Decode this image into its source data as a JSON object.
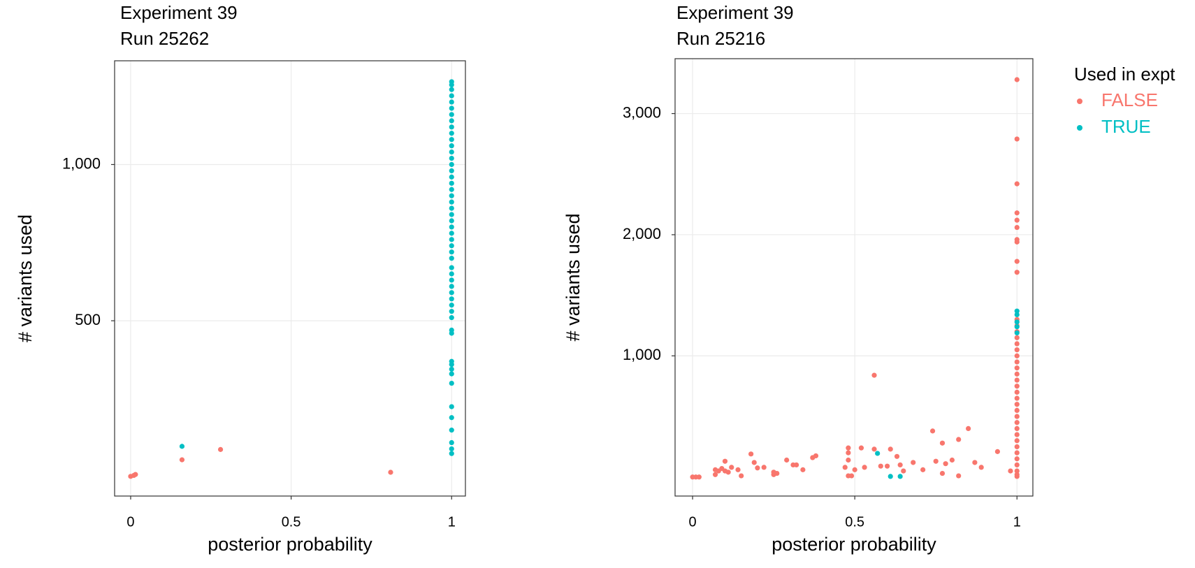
{
  "chart_data": [
    {
      "type": "scatter",
      "title": "Experiment 39",
      "subtitle": "Run 25262",
      "x_label": "posterior probability",
      "y_label": "# variants used",
      "xlim": [
        -0.05,
        1.043
      ],
      "ylim": [
        -61,
        1332
      ],
      "xticks": [
        0,
        0.5,
        1
      ],
      "yticks": [
        500,
        {
          "value": 1000,
          "label": "1,000"
        }
      ],
      "grid": true,
      "series": [
        {
          "color": "#F8766D",
          "x": [
            0,
            0.01,
            0.015,
            0.16,
            0.28,
            0.81
          ],
          "values": [
            2,
            5,
            8,
            55,
            88,
            15
          ]
        },
        {
          "color": "#00BFC4",
          "x": [
            0.16,
            1,
            1,
            1,
            1,
            1,
            1,
            1,
            1,
            1,
            1,
            1,
            1,
            1,
            1,
            1,
            1,
            1,
            1,
            1,
            1,
            1,
            1,
            1,
            1,
            1,
            1,
            1,
            1,
            1,
            1,
            1,
            1,
            1,
            1,
            1,
            1,
            1,
            1,
            1,
            1,
            1,
            1,
            1,
            1,
            1,
            1,
            1,
            1,
            1,
            1,
            1,
            1
          ],
          "values": [
            98,
            75,
            90,
            110,
            150,
            190,
            225,
            300,
            330,
            345,
            360,
            370,
            460,
            470,
            510,
            530,
            550,
            570,
            590,
            610,
            630,
            650,
            670,
            700,
            720,
            740,
            760,
            780,
            800,
            820,
            840,
            860,
            880,
            900,
            920,
            940,
            960,
            980,
            1000,
            1020,
            1040,
            1060,
            1080,
            1100,
            1120,
            1140,
            1160,
            1180,
            1200,
            1220,
            1240,
            1255,
            1265
          ]
        }
      ]
    },
    {
      "type": "scatter",
      "title": "Experiment 39",
      "subtitle": "Run 25216",
      "x_label": "posterior probability",
      "y_label": "# variants used",
      "xlim": [
        -0.054,
        1.049
      ],
      "ylim": [
        -157,
        3453
      ],
      "xticks": [
        0,
        0.5,
        1
      ],
      "yticks": [
        {
          "value": 1000,
          "label": "1,000"
        },
        {
          "value": 2000,
          "label": "2,000"
        },
        {
          "value": 3000,
          "label": "3,000"
        }
      ],
      "grid": true,
      "legend_title": "Used in expt",
      "series": [
        {
          "name": "FALSE",
          "color": "#F8766D",
          "x": [
            0,
            0.01,
            0.02,
            0.07,
            0.07,
            0.08,
            0.09,
            0.1,
            0.1,
            0.11,
            0.12,
            0.14,
            0.15,
            0.18,
            0.19,
            0.2,
            0.22,
            0.25,
            0.25,
            0.26,
            0.29,
            0.31,
            0.32,
            0.34,
            0.37,
            0.38,
            0.47,
            0.48,
            0.48,
            0.48,
            0.48,
            0.49,
            0.5,
            0.52,
            0.53,
            0.56,
            0.56,
            0.58,
            0.6,
            0.61,
            0.63,
            0.64,
            0.65,
            0.68,
            0.71,
            0.74,
            0.75,
            0.77,
            0.77,
            0.78,
            0.8,
            0.82,
            0.82,
            0.85,
            0.87,
            0.89,
            0.94,
            0.98,
            1,
            1,
            1,
            1,
            1,
            1,
            1,
            1,
            1,
            1,
            1,
            1,
            1,
            1,
            1,
            1,
            1,
            1,
            1,
            1,
            1,
            1,
            1,
            1,
            1,
            1,
            1,
            1,
            1,
            1,
            1,
            1,
            1,
            1,
            1,
            1,
            1,
            1
          ],
          "values": [
            0,
            0,
            0,
            20,
            60,
            50,
            70,
            50,
            130,
            40,
            80,
            60,
            10,
            190,
            120,
            75,
            80,
            20,
            40,
            30,
            140,
            100,
            100,
            60,
            160,
            175,
            80,
            140,
            200,
            240,
            10,
            10,
            60,
            240,
            80,
            230,
            840,
            90,
            90,
            230,
            170,
            100,
            50,
            120,
            60,
            380,
            130,
            280,
            30,
            110,
            140,
            310,
            10,
            400,
            120,
            80,
            210,
            50,
            3280,
            2790,
            2420,
            2180,
            2120,
            2060,
            1960,
            1940,
            1780,
            1690,
            1300,
            1250,
            1200,
            1150,
            1100,
            1050,
            1000,
            950,
            900,
            850,
            800,
            750,
            700,
            650,
            600,
            550,
            500,
            450,
            400,
            350,
            300,
            250,
            200,
            150,
            100,
            50,
            20,
            5
          ]
        },
        {
          "name": "TRUE",
          "color": "#00BFC4",
          "x": [
            0.57,
            0.61,
            0.64,
            1,
            1,
            1,
            1,
            1
          ],
          "values": [
            195,
            5,
            5,
            1370,
            1340,
            1280,
            1240,
            1190
          ]
        }
      ]
    }
  ]
}
